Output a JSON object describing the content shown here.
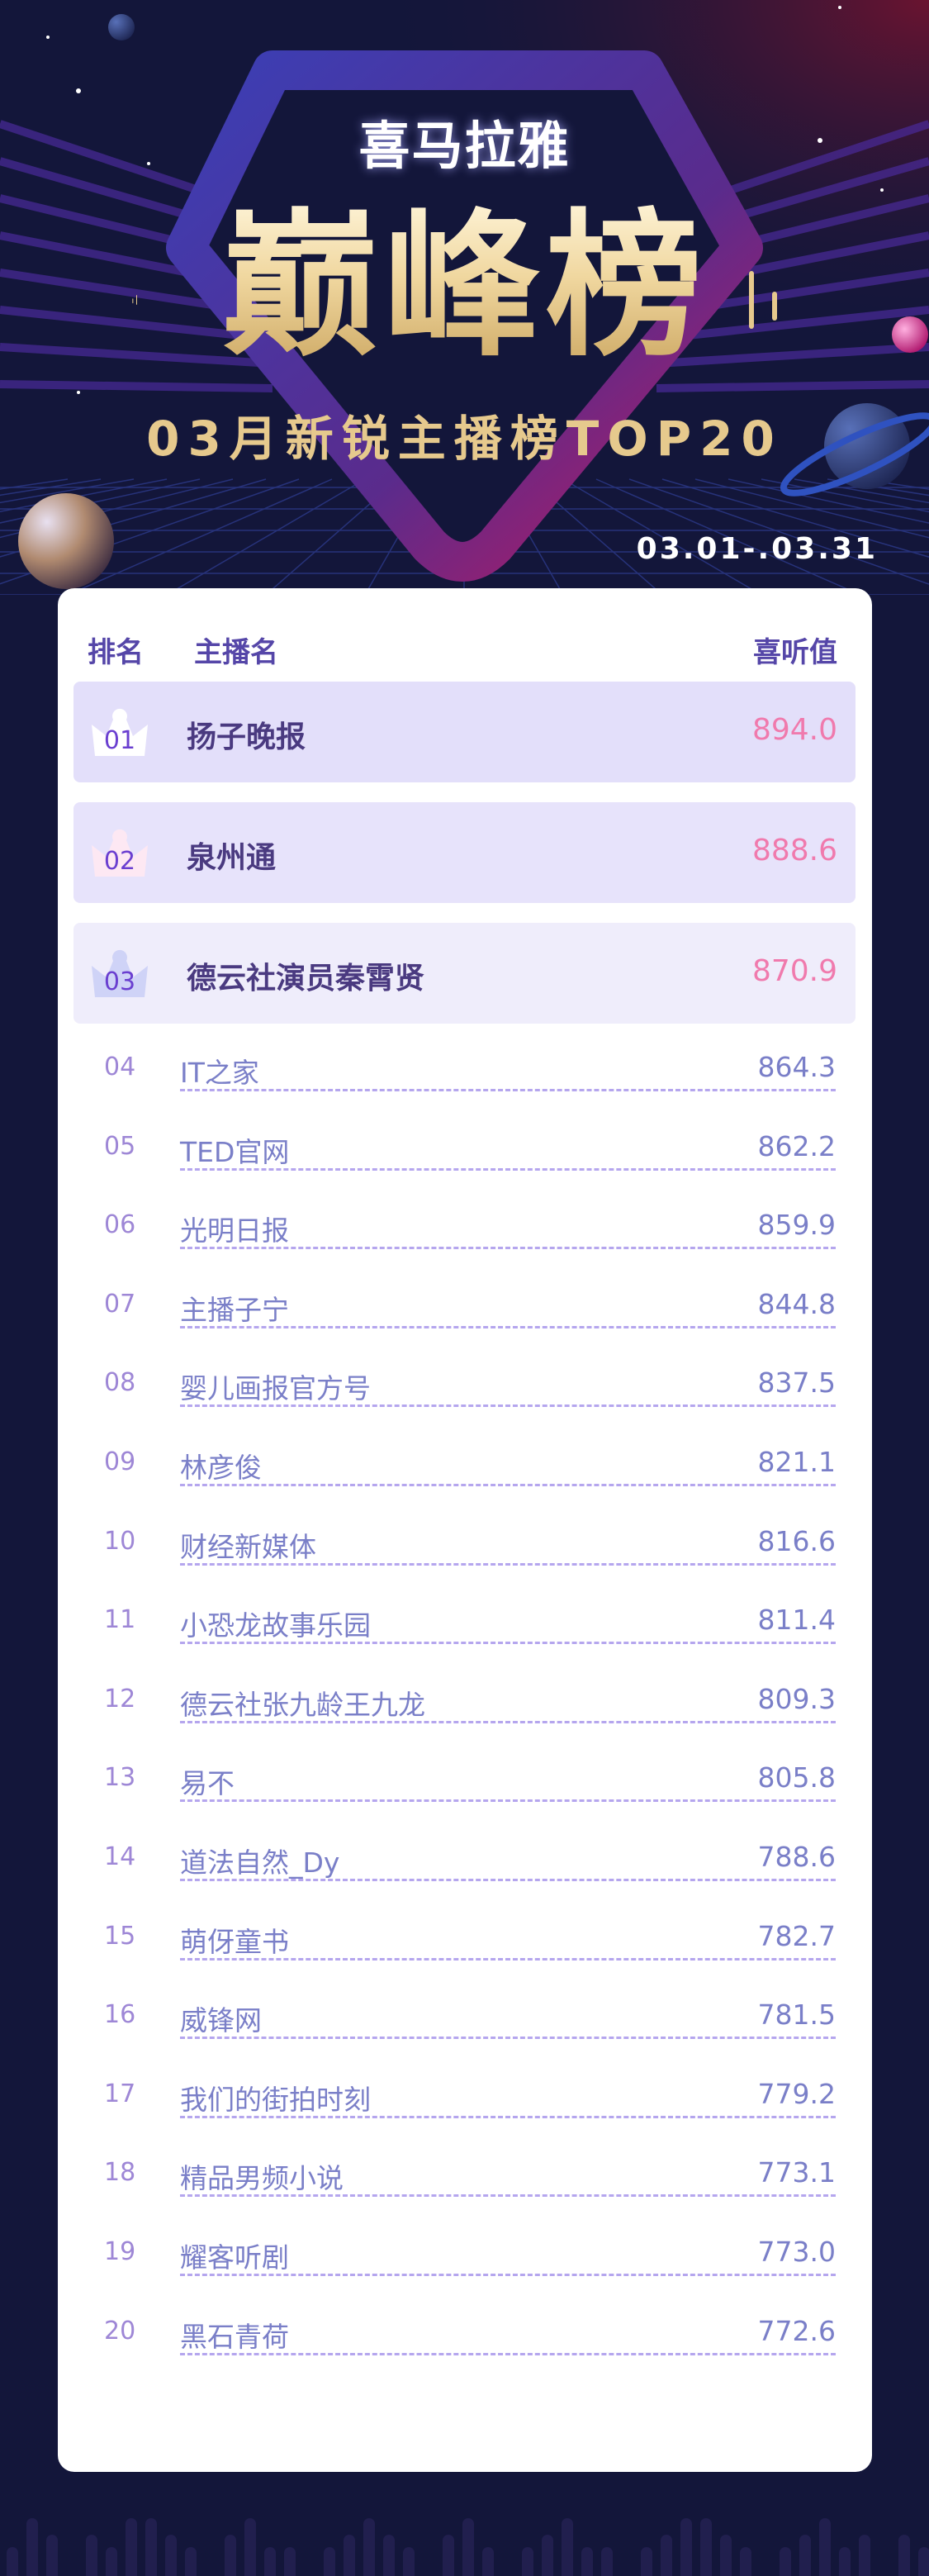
{
  "header": {
    "logo": "喜马拉雅",
    "title": "巅峰榜",
    "subtitle": "03月新锐主播榜TOP20",
    "date_range": "03.01-.03.31"
  },
  "table": {
    "columns": {
      "rank": "排名",
      "name": "主播名",
      "score": "喜听值"
    },
    "top3": [
      {
        "rank": "01",
        "name": "扬子晚报",
        "score": "894.0",
        "bg": "#e3dffa",
        "crown": "#ffffff"
      },
      {
        "rank": "02",
        "name": "泉州通",
        "score": "888.6",
        "bg": "#e7e3fb",
        "crown": "#fde8f3"
      },
      {
        "rank": "03",
        "name": "德云社演员秦霄贤",
        "score": "870.9",
        "bg": "#efedfb",
        "crown": "#cfd3f7"
      }
    ],
    "rows": [
      {
        "rank": "04",
        "name": "IT之家",
        "score": "864.3"
      },
      {
        "rank": "05",
        "name": "TED官网",
        "score": "862.2"
      },
      {
        "rank": "06",
        "name": "光明日报",
        "score": "859.9"
      },
      {
        "rank": "07",
        "name": "主播子宁",
        "score": "844.8"
      },
      {
        "rank": "08",
        "name": "婴儿画报官方号",
        "score": "837.5"
      },
      {
        "rank": "09",
        "name": "林彦俊",
        "score": "821.1"
      },
      {
        "rank": "10",
        "name": "财经新媒体",
        "score": "816.6"
      },
      {
        "rank": "11",
        "name": "小恐龙故事乐园",
        "score": "811.4"
      },
      {
        "rank": "12",
        "name": "德云社张九龄王九龙",
        "score": "809.3"
      },
      {
        "rank": "13",
        "name": "易不",
        "score": "805.8"
      },
      {
        "rank": "14",
        "name": "道法自然_Dy",
        "score": "788.6"
      },
      {
        "rank": "15",
        "name": "萌伢童书",
        "score": "782.7"
      },
      {
        "rank": "16",
        "name": "威锋网",
        "score": "781.5"
      },
      {
        "rank": "17",
        "name": "我们的街拍时刻",
        "score": "779.2"
      },
      {
        "rank": "18",
        "name": "精品男频小说",
        "score": "773.1"
      },
      {
        "rank": "19",
        "name": "耀客听剧",
        "score": "773.0"
      },
      {
        "rank": "20",
        "name": "黑石青荷",
        "score": "772.6"
      }
    ]
  },
  "colors": {
    "background": "#13163a",
    "accent": "#5546a8",
    "score_top": "#f07aad",
    "gold": "#e6c98d"
  }
}
